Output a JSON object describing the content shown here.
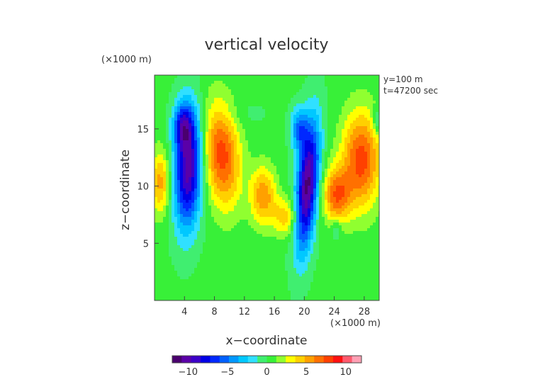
{
  "chart_data": {
    "type": "heatmap",
    "title": "vertical velocity",
    "xlabel": "x−coordinate",
    "ylabel": "z−coordinate",
    "x_unit": "(×1000 m)",
    "y_unit": "(×1000 m)",
    "annotations": [
      "y=100 m",
      "t=47200 sec"
    ],
    "xlim": [
      0,
      30
    ],
    "ylim": [
      0,
      19.7
    ],
    "x_ticks": [
      4,
      8,
      12,
      16,
      20,
      24,
      28
    ],
    "x_tick_labels": [
      "4",
      "8",
      "12",
      "16",
      "20",
      "24",
      "28"
    ],
    "y_ticks": [
      5,
      10,
      15
    ],
    "y_tick_labels": [
      "5",
      "10",
      "15"
    ],
    "colorbar": {
      "range": [
        -12,
        12
      ],
      "ticks": [
        -10,
        -5,
        0,
        5,
        10
      ],
      "tick_labels": [
        "−10",
        "−5",
        "0",
        "5",
        "10"
      ],
      "colors": [
        "#4a006e",
        "#5a00a8",
        "#3c00c8",
        "#0000e6",
        "#0028ff",
        "#0060ff",
        "#0098ff",
        "#00c8ff",
        "#30e0ff",
        "#40ee70",
        "#38f038",
        "#90ff30",
        "#ffff00",
        "#ffd000",
        "#ffa000",
        "#ff7000",
        "#ff4000",
        "#ff1010",
        "#ff5a6e",
        "#ffa0b4"
      ]
    },
    "background_value": 0.3,
    "features": [
      {
        "x": 4.5,
        "z": 11.5,
        "sx": 1.3,
        "sz": 3.6,
        "amp": -10.5,
        "tilt": 0.05
      },
      {
        "x": 3.8,
        "z": 15.3,
        "sx": 0.9,
        "sz": 1.4,
        "amp": -6
      },
      {
        "x": 20.4,
        "z": 10.0,
        "sx": 1.0,
        "sz": 3.9,
        "amp": -11.5,
        "tilt": 0.12
      },
      {
        "x": 19.3,
        "z": 15.0,
        "sx": 0.8,
        "sz": 1.3,
        "amp": -5
      },
      {
        "x": 9.0,
        "z": 12.7,
        "sx": 1.7,
        "sz": 3.2,
        "amp": 7.5,
        "tilt": -0.1
      },
      {
        "x": 14.5,
        "z": 9.2,
        "sx": 1.2,
        "sz": 1.8,
        "amp": 5.5
      },
      {
        "x": 17.5,
        "z": 7.3,
        "sx": 1.2,
        "sz": 1.2,
        "amp": 4
      },
      {
        "x": 27.6,
        "z": 12.3,
        "sx": 1.8,
        "sz": 3.0,
        "amp": 7.5
      },
      {
        "x": 24.3,
        "z": 9.2,
        "sx": 1.3,
        "sz": 1.7,
        "amp": 6.5
      },
      {
        "x": 0.8,
        "z": 10.3,
        "sx": 0.9,
        "sz": 2.0,
        "amp": 5
      },
      {
        "x": 29.7,
        "z": 15.7,
        "sx": 0.4,
        "sz": 0.8,
        "amp": -3
      },
      {
        "x": 24.3,
        "z": 6.2,
        "sx": 0.5,
        "sz": 0.6,
        "amp": -2.5
      },
      {
        "x": 12.0,
        "z": 16.3,
        "sx": 2.5,
        "sz": 0.9,
        "amp": -0.6
      }
    ]
  }
}
